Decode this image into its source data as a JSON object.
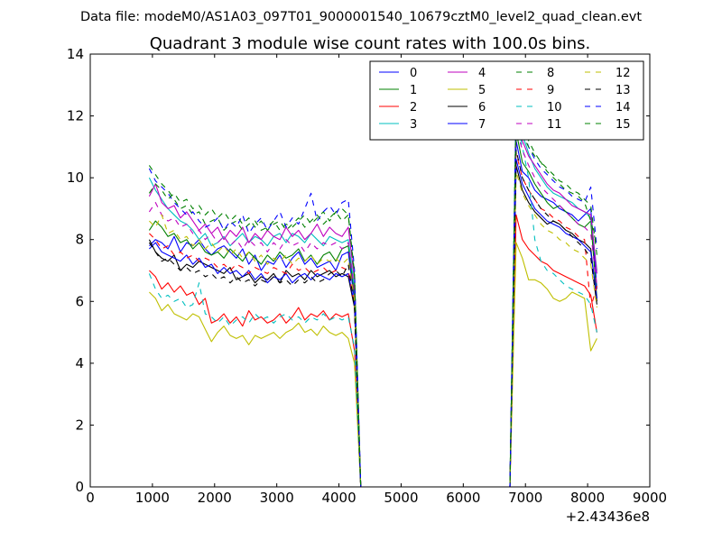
{
  "chart_data": {
    "type": "line",
    "suptitle": "Data file: modeM0/AS1A03_097T01_9000001540_10679cztM0_level2_quad_clean.evt",
    "title": "Quadrant 3 module wise count rates with 100.0s bins.",
    "xlabel": "",
    "ylabel": "",
    "x_offset_label": "+2.43436e8",
    "xlim": [
      0,
      9000
    ],
    "ylim": [
      0,
      14
    ],
    "xticks": [
      0,
      1000,
      2000,
      3000,
      4000,
      5000,
      6000,
      7000,
      8000,
      9000
    ],
    "yticks": [
      0,
      2,
      4,
      6,
      8,
      10,
      12,
      14
    ],
    "legend_position": "top-right",
    "legend_columns": 4,
    "x_segment_1": [
      950,
      1050,
      1150,
      1250,
      1350,
      1450,
      1550,
      1650,
      1750,
      1850,
      1950,
      2050,
      2150,
      2250,
      2350,
      2450,
      2550,
      2650,
      2750,
      2850,
      2950,
      3050,
      3150,
      3250,
      3350,
      3450,
      3550,
      3650,
      3750,
      3850,
      3950,
      4050,
      4150,
      4250,
      4350
    ],
    "x_gap": [
      4350,
      6650
    ],
    "x_segment_2": [
      6750,
      6850,
      6950,
      7050,
      7150,
      7250,
      7350,
      7450,
      7550,
      7650,
      7750,
      7850,
      7950,
      8050,
      8150
    ],
    "series": [
      {
        "name": "0",
        "color": "#0000ff",
        "dash": "solid",
        "seg1": [
          7.8,
          8.0,
          7.9,
          7.7,
          8.1,
          7.6,
          7.9,
          7.8,
          8.0,
          7.7,
          7.5,
          7.7,
          7.8,
          7.6,
          7.4,
          7.7,
          7.2,
          7.5,
          7.0,
          7.3,
          7.2,
          7.5,
          7.1,
          7.4,
          7.6,
          7.2,
          7.4,
          7.1,
          7.2,
          7.3,
          7.0,
          7.5,
          7.6,
          6.0,
          0
        ],
        "seg2": [
          0,
          11.2,
          10.2,
          10.0,
          9.6,
          9.4,
          9.3,
          9.2,
          9.0,
          8.9,
          8.8,
          8.6,
          8.8,
          9.0,
          6.4
        ]
      },
      {
        "name": "1",
        "color": "#008000",
        "dash": "solid",
        "seg1": [
          8.3,
          8.6,
          8.4,
          8.1,
          8.2,
          7.9,
          8.0,
          7.7,
          7.9,
          7.6,
          7.5,
          7.6,
          7.4,
          7.7,
          7.5,
          7.3,
          7.6,
          7.4,
          7.2,
          7.5,
          7.3,
          7.6,
          7.4,
          7.5,
          7.7,
          7.3,
          7.5,
          7.2,
          7.5,
          7.6,
          7.3,
          7.7,
          7.8,
          6.2,
          0
        ],
        "seg2": [
          0,
          11.5,
          10.5,
          10.2,
          9.8,
          9.5,
          9.2,
          9.0,
          9.1,
          8.9,
          8.7,
          8.5,
          8.4,
          8.6,
          6.1
        ]
      },
      {
        "name": "2",
        "color": "#ff0000",
        "dash": "solid",
        "seg1": [
          7.0,
          6.8,
          6.4,
          6.6,
          6.3,
          6.5,
          6.2,
          6.3,
          5.9,
          6.1,
          5.3,
          5.4,
          5.6,
          5.3,
          5.5,
          5.2,
          5.7,
          5.4,
          5.5,
          5.3,
          5.4,
          5.6,
          5.3,
          5.5,
          5.8,
          5.4,
          5.6,
          5.5,
          5.7,
          5.4,
          5.6,
          5.5,
          5.6,
          4.4,
          0
        ],
        "seg2": [
          0,
          8.8,
          8.0,
          7.7,
          7.5,
          7.3,
          7.2,
          7.0,
          6.9,
          6.8,
          6.7,
          6.6,
          6.5,
          6.2,
          5.0
        ]
      },
      {
        "name": "3",
        "color": "#00bfbf",
        "dash": "solid",
        "seg1": [
          10.0,
          9.6,
          9.3,
          9.0,
          8.8,
          8.6,
          8.5,
          8.3,
          8.0,
          8.2,
          7.8,
          7.9,
          8.1,
          7.8,
          8.0,
          8.2,
          7.9,
          8.1,
          8.0,
          7.8,
          8.1,
          8.2,
          7.9,
          8.2,
          8.1,
          7.9,
          8.2,
          8.0,
          7.8,
          8.1,
          8.0,
          7.9,
          8.0,
          6.4,
          0
        ],
        "seg2": [
          0,
          12.3,
          11.4,
          10.8,
          10.3,
          10.0,
          9.7,
          9.5,
          9.4,
          9.3,
          9.2,
          9.0,
          8.9,
          8.7,
          7.0
        ]
      },
      {
        "name": "4",
        "color": "#bf00bf",
        "dash": "solid",
        "seg1": [
          9.4,
          9.8,
          9.2,
          9.0,
          9.1,
          8.7,
          8.9,
          8.6,
          8.3,
          8.5,
          8.2,
          8.4,
          8.0,
          8.3,
          8.1,
          8.4,
          7.9,
          8.2,
          8.0,
          8.3,
          8.1,
          8.0,
          8.4,
          8.1,
          8.3,
          8.0,
          8.2,
          8.5,
          8.1,
          8.4,
          8.2,
          8.1,
          8.4,
          6.7,
          0
        ],
        "seg2": [
          0,
          12.0,
          11.2,
          10.7,
          10.4,
          10.1,
          9.8,
          9.6,
          9.5,
          9.3,
          9.1,
          9.0,
          8.9,
          8.8,
          6.9
        ]
      },
      {
        "name": "5",
        "color": "#bfbf00",
        "dash": "solid",
        "seg1": [
          6.3,
          6.1,
          5.7,
          5.9,
          5.6,
          5.5,
          5.4,
          5.6,
          5.5,
          5.1,
          4.7,
          5.0,
          5.2,
          4.9,
          4.8,
          4.9,
          4.6,
          4.9,
          4.8,
          4.9,
          5.0,
          4.8,
          5.0,
          5.1,
          5.3,
          5.0,
          5.1,
          4.9,
          5.2,
          5.0,
          4.9,
          5.0,
          4.8,
          4.0,
          0
        ],
        "seg2": [
          0,
          7.9,
          7.4,
          6.7,
          6.7,
          6.6,
          6.4,
          6.1,
          6.0,
          6.1,
          6.3,
          6.2,
          6.1,
          4.4,
          4.8
        ]
      },
      {
        "name": "6",
        "color": "#000000",
        "dash": "solid",
        "seg1": [
          8.0,
          7.6,
          7.4,
          7.3,
          7.5,
          7.0,
          7.2,
          7.1,
          7.3,
          7.2,
          7.1,
          7.0,
          6.9,
          7.1,
          6.7,
          6.8,
          6.9,
          6.6,
          6.8,
          6.7,
          6.9,
          6.6,
          7.0,
          6.8,
          6.9,
          6.7,
          7.0,
          6.8,
          6.9,
          7.0,
          6.8,
          6.9,
          6.8,
          5.8,
          0
        ],
        "seg2": [
          0,
          10.4,
          9.6,
          9.2,
          8.9,
          8.7,
          8.5,
          8.6,
          8.5,
          8.3,
          8.2,
          8.0,
          7.9,
          7.7,
          6.0
        ]
      },
      {
        "name": "7",
        "color": "#0000ff",
        "dash": "solid",
        "seg1": [
          7.7,
          7.9,
          7.6,
          7.5,
          7.4,
          7.3,
          7.5,
          7.2,
          7.4,
          7.1,
          7.2,
          6.9,
          7.1,
          6.9,
          7.0,
          6.8,
          7.0,
          6.7,
          6.9,
          6.6,
          6.8,
          6.7,
          6.9,
          6.6,
          6.8,
          6.9,
          6.7,
          6.9,
          6.8,
          6.7,
          6.9,
          6.8,
          6.9,
          5.9,
          0
        ],
        "seg2": [
          0,
          10.6,
          9.8,
          9.4,
          9.0,
          8.8,
          8.6,
          8.5,
          8.4,
          8.2,
          8.1,
          8.0,
          7.8,
          7.6,
          6.1
        ]
      },
      {
        "name": "8",
        "color": "#008000",
        "dash": "dashed",
        "seg1": [
          10.4,
          10.1,
          9.8,
          9.6,
          9.3,
          9.0,
          9.1,
          8.8,
          8.9,
          8.5,
          8.6,
          8.7,
          8.3,
          8.5,
          8.6,
          8.3,
          8.5,
          8.6,
          8.3,
          8.4,
          8.6,
          8.3,
          8.5,
          8.4,
          8.6,
          8.8,
          8.5,
          8.7,
          8.9,
          8.6,
          8.9,
          9.0,
          8.8,
          6.8,
          0
        ],
        "seg2": [
          0,
          12.7,
          11.8,
          11.2,
          10.8,
          10.5,
          10.3,
          10.1,
          9.9,
          9.8,
          9.6,
          9.5,
          9.3,
          9.1,
          7.5
        ]
      },
      {
        "name": "9",
        "color": "#ff0000",
        "dash": "dashed",
        "seg1": [
          8.2,
          8.0,
          7.7,
          7.8,
          7.5,
          7.6,
          7.4,
          7.5,
          7.3,
          7.4,
          7.3,
          7.1,
          7.2,
          7.0,
          7.2,
          7.1,
          6.9,
          7.1,
          7.0,
          6.9,
          7.1,
          7.0,
          6.9,
          7.2,
          7.0,
          7.1,
          6.9,
          7.0,
          7.1,
          6.9,
          7.0,
          7.1,
          7.0,
          5.9,
          0
        ],
        "seg2": [
          0,
          10.8,
          10.0,
          9.6,
          9.3,
          9.0,
          8.9,
          8.7,
          8.6,
          8.4,
          8.3,
          8.1,
          8.0,
          5.8,
          6.5
        ]
      },
      {
        "name": "10",
        "color": "#00bfbf",
        "dash": "dashed",
        "seg1": [
          6.9,
          6.4,
          6.1,
          6.2,
          6.0,
          6.1,
          5.8,
          5.9,
          6.6,
          5.6,
          5.5,
          5.3,
          5.5,
          5.2,
          5.4,
          5.5,
          5.3,
          5.6,
          5.4,
          5.5,
          5.3,
          5.5,
          5.6,
          5.4,
          5.5,
          5.3,
          5.5,
          5.4,
          5.6,
          5.4,
          5.5,
          5.4,
          5.5,
          4.5,
          0
        ],
        "seg2": [
          0,
          12.0,
          11.0,
          10.0,
          8.0,
          7.3,
          7.0,
          6.9,
          6.7,
          6.5,
          6.4,
          6.3,
          6.2,
          5.9,
          5.0
        ]
      },
      {
        "name": "11",
        "color": "#bf00bf",
        "dash": "dashed",
        "seg1": [
          8.9,
          9.2,
          8.8,
          8.6,
          8.7,
          8.4,
          8.5,
          8.2,
          8.3,
          8.0,
          8.2,
          7.9,
          8.1,
          7.8,
          8.0,
          7.7,
          8.0,
          7.8,
          7.9,
          7.6,
          7.9,
          7.7,
          8.0,
          7.8,
          7.9,
          7.6,
          7.9,
          7.7,
          7.9,
          7.8,
          7.9,
          7.7,
          7.9,
          6.3,
          0
        ],
        "seg2": [
          0,
          11.6,
          10.9,
          10.4,
          10.0,
          9.7,
          9.5,
          9.3,
          9.1,
          8.9,
          8.7,
          8.5,
          8.4,
          8.2,
          6.5
        ]
      },
      {
        "name": "12",
        "color": "#bfbf00",
        "dash": "dashed",
        "seg1": [
          8.6,
          8.4,
          8.8,
          8.2,
          8.3,
          8.0,
          8.1,
          7.8,
          8.0,
          7.7,
          7.9,
          7.6,
          7.8,
          7.5,
          7.7,
          7.4,
          7.6,
          7.3,
          7.5,
          7.2,
          7.4,
          7.3,
          7.5,
          7.2,
          7.4,
          7.3,
          7.5,
          7.2,
          7.4,
          7.3,
          7.4,
          7.2,
          7.4,
          6.0,
          0
        ],
        "seg2": [
          0,
          10.2,
          9.5,
          9.1,
          8.8,
          8.5,
          8.3,
          8.2,
          8.0,
          7.9,
          7.7,
          7.6,
          7.4,
          7.2,
          5.8
        ]
      },
      {
        "name": "13",
        "color": "#000000",
        "dash": "dashed",
        "seg1": [
          7.9,
          7.6,
          7.3,
          7.4,
          7.2,
          7.0,
          7.1,
          6.9,
          7.0,
          6.8,
          6.9,
          6.7,
          6.8,
          6.6,
          6.8,
          6.6,
          6.7,
          6.5,
          6.7,
          6.6,
          6.8,
          6.6,
          6.7,
          6.5,
          6.7,
          6.6,
          6.8,
          6.6,
          6.7,
          6.9,
          7.0,
          6.8,
          7.2,
          5.8,
          0
        ],
        "seg2": [
          0,
          10.9,
          10.0,
          9.6,
          9.3,
          9.0,
          8.8,
          8.6,
          8.5,
          8.3,
          8.1,
          7.9,
          7.7,
          7.4,
          5.9
        ]
      },
      {
        "name": "14",
        "color": "#0000ff",
        "dash": "dashed",
        "seg1": [
          10.3,
          9.9,
          9.7,
          9.5,
          9.2,
          9.0,
          8.8,
          8.9,
          8.6,
          8.4,
          8.5,
          8.7,
          8.3,
          8.6,
          8.4,
          8.8,
          8.2,
          8.5,
          8.7,
          8.3,
          8.6,
          8.9,
          8.4,
          8.7,
          8.5,
          9.0,
          9.5,
          8.6,
          8.9,
          9.1,
          8.8,
          9.2,
          9.3,
          7.0,
          0
        ],
        "seg2": [
          0,
          12.5,
          11.6,
          11.0,
          10.6,
          10.3,
          10.1,
          9.9,
          9.7,
          9.6,
          9.4,
          9.3,
          9.2,
          9.7,
          7.7
        ]
      },
      {
        "name": "15",
        "color": "#008000",
        "dash": "dashed",
        "seg1": [
          9.5,
          9.8,
          9.6,
          9.3,
          9.5,
          9.2,
          9.3,
          9.0,
          9.1,
          8.8,
          9.0,
          8.7,
          8.9,
          8.6,
          8.8,
          8.5,
          8.7,
          8.4,
          8.6,
          8.3,
          8.5,
          8.6,
          8.3,
          8.5,
          8.7,
          8.4,
          8.6,
          8.8,
          8.5,
          8.7,
          8.9,
          8.6,
          8.8,
          6.9,
          0
        ],
        "seg2": [
          0,
          12.1,
          11.4,
          11.0,
          10.7,
          10.5,
          10.2,
          10.0,
          9.8,
          9.6,
          9.5,
          9.4,
          9.2,
          8.6,
          7.8
        ]
      }
    ]
  }
}
